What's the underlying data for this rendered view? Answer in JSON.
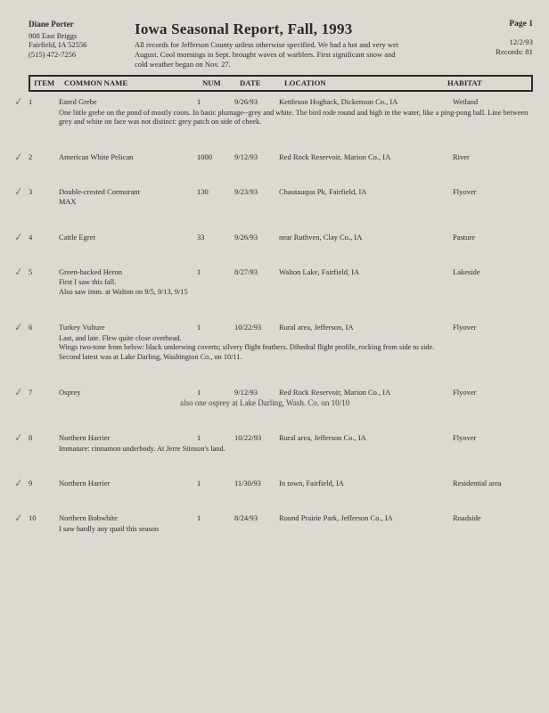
{
  "header": {
    "author": "Diane Porter",
    "addr1": "908 East Briggs",
    "addr2": "Fairfield, IA 52556",
    "phone": "(515) 472-7256",
    "title": "Iowa Seasonal Report, Fall, 1993",
    "note": "All records for Jefferson County unless otherwise specified. We had a hot and very wet August. Cool mornings in Sept. brought waves of warblers. First significant snow and cold weather began on Nov. 27.",
    "page": "Page 1",
    "date": "12/2/93",
    "records": "Records: 81"
  },
  "columns": {
    "item": "ITEM",
    "name": "COMMON NAME",
    "num": "NUM",
    "date": "DATE",
    "loc": "LOCATION",
    "hab": "HABITAT"
  },
  "records": [
    {
      "item": "1",
      "name": "Eared Grebe",
      "num": "1",
      "date": "9/26/93",
      "loc": "Kettleson Hogback, Dickenson Co., IA",
      "hab": "Wetland",
      "note": "One little grebe on the pond of mostly coots. In basic plumage--grey and white. The bird rode round and high in the water, like a ping-pong ball.  Line between grey and white on face was not distinct: grey patch on side of cheek."
    },
    {
      "item": "2",
      "name": "American White Pelican",
      "num": "1000",
      "date": "9/12/93",
      "loc": "Red Rock Reservoir, Marion Co., IA",
      "hab": "River"
    },
    {
      "item": "3",
      "name": "Double-crested Cormorant",
      "num": "130",
      "date": "9/23/93",
      "loc": "Chautauqua Pk, Fairfield, IA",
      "hab": "Flyover",
      "extra": "MAX"
    },
    {
      "item": "4",
      "name": "Cattle Egret",
      "num": "33",
      "date": "9/26/93",
      "loc": "near Ruthven, Clay Co., IA",
      "hab": "Pasture"
    },
    {
      "item": "5",
      "name": "Green-backed Heron",
      "num": "1",
      "date": "8/27/93",
      "loc": "Walton Lake, Fairfield, IA",
      "hab": "Lakeside",
      "note": "First I saw this fall.\nAlso saw imm. at Walton on 9/5, 9/13, 9/15"
    },
    {
      "item": "6",
      "name": "Turkey Vulture",
      "num": "1",
      "date": "10/22/93",
      "loc": "Rural area, Jefferson, IA",
      "hab": "Flyover",
      "note": "Last, and late. Flew quite close overhead.\nWings two-tone from below: black underwing coverts; silvery flight feathers. Dihedral flight profile, rocking from side to side.\nSecond latest was at Lake Darling, Washington Co., on 10/11."
    },
    {
      "item": "7",
      "name": "Osprey",
      "num": "1",
      "date": "9/12/93",
      "loc": "Red Rock Reservoir, Marion Co., IA",
      "hab": "Flyover",
      "hand": "also one osprey at Lake Darling, Wash. Co. on 10/10"
    },
    {
      "item": "8",
      "name": "Northern Harrier",
      "num": "1",
      "date": "10/22/93",
      "loc": "Rural area, Jefferson Co., IA",
      "hab": "Flyover",
      "note": "Immature: cinnamon underbody.  At Jerre Stinson's land."
    },
    {
      "item": "9",
      "name": "Northern Harrier",
      "num": "1",
      "date": "11/30/93",
      "loc": "In town, Fairfield, IA",
      "hab": "Residential area"
    },
    {
      "item": "10",
      "name": "Northern Bobwhite",
      "num": "1",
      "date": "8/24/93",
      "loc": "Round Prairie Park, Jefferson Co., IA",
      "hab": "Roadside",
      "note": "I saw hardly any quail this season"
    }
  ]
}
